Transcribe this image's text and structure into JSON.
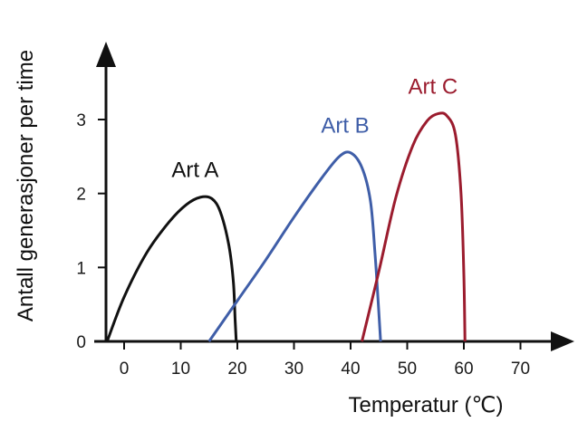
{
  "chart_data": {
    "type": "line",
    "xlabel": "Temperatur (℃)",
    "ylabel": "Antall generasjoner per time",
    "xlim": [
      -4,
      80
    ],
    "ylim": [
      0,
      3.7
    ],
    "xticks": [
      0,
      10,
      20,
      30,
      40,
      50,
      60,
      70
    ],
    "yticks": [
      0,
      1,
      2,
      3
    ],
    "grid": false,
    "legend": "none",
    "series": [
      {
        "name": "Art A",
        "color": "#111111",
        "x": [
          -3,
          0,
          4,
          8,
          11,
          13.5,
          15.5,
          17,
          18.5,
          19.3,
          19.6,
          19.8
        ],
        "y": [
          0,
          0.6,
          1.2,
          1.62,
          1.85,
          1.95,
          1.93,
          1.75,
          1.3,
          0.8,
          0.3,
          0
        ]
      },
      {
        "name": "Art B",
        "color": "#3f5ea8",
        "x": [
          15,
          20,
          25,
          30,
          35,
          38,
          40,
          42,
          43.5,
          44.3,
          44.9,
          45.3
        ],
        "y": [
          0,
          0.55,
          1.1,
          1.68,
          2.22,
          2.5,
          2.55,
          2.35,
          1.9,
          1.2,
          0.5,
          0
        ]
      },
      {
        "name": "Art C",
        "color": "#9b1c2e",
        "x": [
          42,
          45,
          48,
          51,
          53.5,
          55.5,
          57,
          58.5,
          59.5,
          60,
          60.2
        ],
        "y": [
          0,
          0.95,
          1.95,
          2.65,
          2.98,
          3.08,
          3.05,
          2.8,
          2.0,
          0.9,
          0
        ]
      }
    ]
  }
}
